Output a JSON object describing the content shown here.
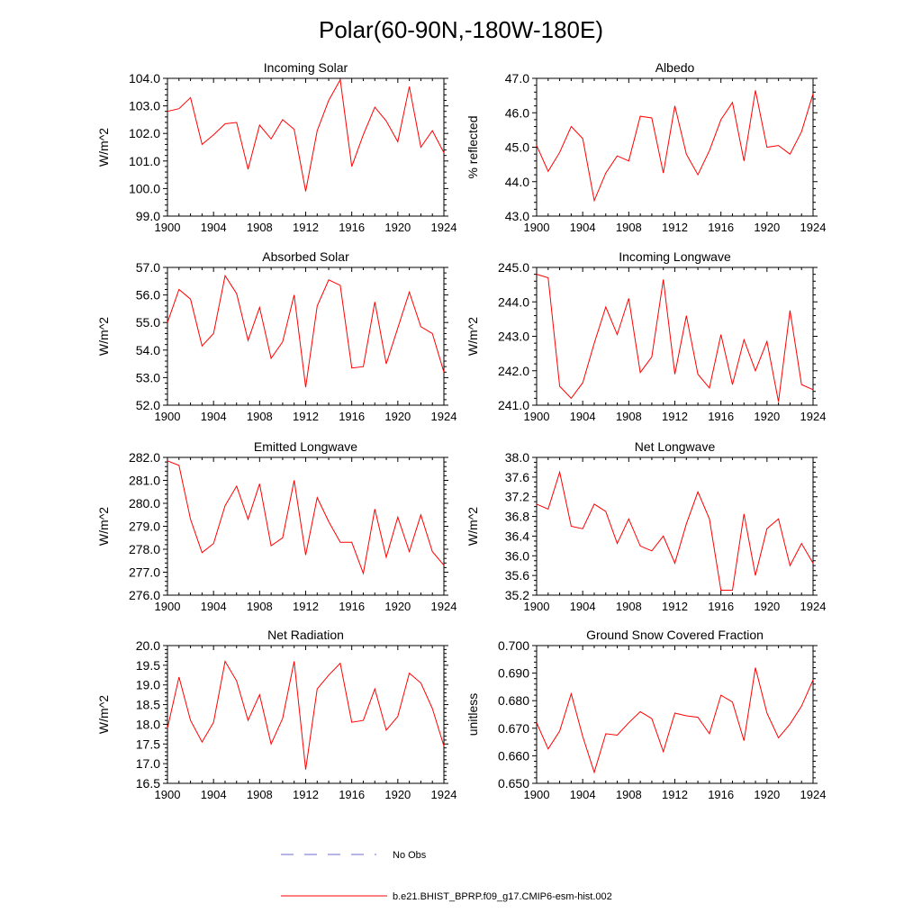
{
  "title": "Polar(60-90N,-180W-180E)",
  "legend": {
    "entries": [
      {
        "label": "No Obs",
        "color": "#6b6bd6",
        "style": "dashed"
      },
      {
        "label": "b.e21.BHIST_BPRP.f09_g17.CMIP6-esm-hist.002",
        "color": "#ff0000",
        "style": "solid"
      }
    ]
  },
  "chart_data": [
    {
      "type": "line",
      "title": "Incoming Solar",
      "ylabel": "W/m^2",
      "xlim": [
        1900,
        1924
      ],
      "xticks": [
        1900,
        1904,
        1908,
        1912,
        1916,
        1920,
        1924
      ],
      "xtick_labels": [
        "1900",
        "1904",
        "1908",
        "1912",
        "1916",
        "1920",
        "1924"
      ],
      "ylim": [
        99.0,
        104.0
      ],
      "yticks": [
        99.0,
        100.0,
        101.0,
        102.0,
        103.0,
        104.0
      ],
      "ytick_labels": [
        "99.0",
        "100.0",
        "101.0",
        "102.0",
        "103.0",
        "104.0"
      ],
      "yminor": 5,
      "series": [
        {
          "name": "b.e21.BHIST_BPRP.f09_g17.CMIP6-esm-hist.002",
          "color": "#ff0000",
          "x": [
            1900,
            1901,
            1902,
            1903,
            1904,
            1905,
            1906,
            1907,
            1908,
            1909,
            1910,
            1911,
            1912,
            1913,
            1914,
            1915,
            1916,
            1917,
            1918,
            1919,
            1920,
            1921,
            1922,
            1923,
            1924
          ],
          "y": [
            102.8,
            102.9,
            103.3,
            101.6,
            101.95,
            102.35,
            102.4,
            100.7,
            102.3,
            101.8,
            102.5,
            102.15,
            99.9,
            102.1,
            103.2,
            103.95,
            100.8,
            101.95,
            102.95,
            102.45,
            101.7,
            103.7,
            101.5,
            102.1,
            101.3
          ]
        }
      ]
    },
    {
      "type": "line",
      "title": "Albedo",
      "ylabel": "% reflected",
      "xlim": [
        1900,
        1924
      ],
      "xticks": [
        1900,
        1904,
        1908,
        1912,
        1916,
        1920,
        1924
      ],
      "xtick_labels": [
        "1900",
        "1904",
        "1908",
        "1912",
        "1916",
        "1920",
        "1924"
      ],
      "ylim": [
        43.0,
        47.0
      ],
      "yticks": [
        43.0,
        44.0,
        45.0,
        46.0,
        47.0
      ],
      "ytick_labels": [
        "43.0",
        "44.0",
        "45.0",
        "46.0",
        "47.0"
      ],
      "yminor": 5,
      "series": [
        {
          "name": "b.e21.BHIST_BPRP.f09_g17.CMIP6-esm-hist.002",
          "color": "#ff0000",
          "x": [
            1900,
            1901,
            1902,
            1903,
            1904,
            1905,
            1906,
            1907,
            1908,
            1909,
            1910,
            1911,
            1912,
            1913,
            1914,
            1915,
            1916,
            1917,
            1918,
            1919,
            1920,
            1921,
            1922,
            1923,
            1924
          ],
          "y": [
            45.05,
            44.3,
            44.85,
            45.6,
            45.25,
            43.45,
            44.25,
            44.75,
            44.6,
            45.9,
            45.85,
            44.25,
            46.2,
            44.8,
            44.2,
            44.9,
            45.8,
            46.3,
            44.6,
            46.65,
            45.0,
            45.05,
            44.8,
            45.45,
            46.55
          ]
        }
      ]
    },
    {
      "type": "line",
      "title": "Absorbed Solar",
      "ylabel": "W/m^2",
      "xlim": [
        1900,
        1924
      ],
      "xticks": [
        1900,
        1904,
        1908,
        1912,
        1916,
        1920,
        1924
      ],
      "xtick_labels": [
        "1900",
        "1904",
        "1908",
        "1912",
        "1916",
        "1920",
        "1924"
      ],
      "ylim": [
        52.0,
        57.0
      ],
      "yticks": [
        52.0,
        53.0,
        54.0,
        55.0,
        56.0,
        57.0
      ],
      "ytick_labels": [
        "52.0",
        "53.0",
        "54.0",
        "55.0",
        "56.0",
        "57.0"
      ],
      "yminor": 5,
      "series": [
        {
          "name": "b.e21.BHIST_BPRP.f09_g17.CMIP6-esm-hist.002",
          "color": "#ff0000",
          "x": [
            1900,
            1901,
            1902,
            1903,
            1904,
            1905,
            1906,
            1907,
            1908,
            1909,
            1910,
            1911,
            1912,
            1913,
            1914,
            1915,
            1916,
            1917,
            1918,
            1919,
            1920,
            1921,
            1922,
            1923,
            1924
          ],
          "y": [
            55.0,
            56.2,
            55.85,
            54.15,
            54.6,
            56.7,
            56.05,
            54.35,
            55.55,
            53.7,
            54.3,
            56.0,
            52.65,
            55.6,
            56.55,
            56.35,
            53.35,
            53.4,
            55.75,
            53.5,
            54.8,
            56.1,
            54.85,
            54.6,
            53.2
          ]
        }
      ]
    },
    {
      "type": "line",
      "title": "Incoming Longwave",
      "ylabel": "W/m^2",
      "xlim": [
        1900,
        1924
      ],
      "xticks": [
        1900,
        1904,
        1908,
        1912,
        1916,
        1920,
        1924
      ],
      "xtick_labels": [
        "1900",
        "1904",
        "1908",
        "1912",
        "1916",
        "1920",
        "1924"
      ],
      "ylim": [
        241.0,
        245.0
      ],
      "yticks": [
        241.0,
        242.0,
        243.0,
        244.0,
        245.0
      ],
      "ytick_labels": [
        "241.0",
        "242.0",
        "243.0",
        "244.0",
        "245.0"
      ],
      "yminor": 5,
      "series": [
        {
          "name": "b.e21.BHIST_BPRP.f09_g17.CMIP6-esm-hist.002",
          "color": "#ff0000",
          "x": [
            1900,
            1901,
            1902,
            1903,
            1904,
            1905,
            1906,
            1907,
            1908,
            1909,
            1910,
            1911,
            1912,
            1913,
            1914,
            1915,
            1916,
            1917,
            1918,
            1919,
            1920,
            1921,
            1922,
            1923,
            1924
          ],
          "y": [
            244.8,
            244.7,
            241.55,
            241.2,
            241.65,
            242.8,
            243.85,
            243.05,
            244.1,
            241.95,
            242.4,
            244.65,
            241.9,
            243.6,
            241.9,
            241.5,
            243.05,
            241.6,
            242.9,
            242.0,
            242.85,
            241.1,
            243.75,
            241.6,
            241.45
          ]
        }
      ]
    },
    {
      "type": "line",
      "title": "Emitted Longwave",
      "ylabel": "W/m^2",
      "xlim": [
        1900,
        1924
      ],
      "xticks": [
        1900,
        1904,
        1908,
        1912,
        1916,
        1920,
        1924
      ],
      "xtick_labels": [
        "1900",
        "1904",
        "1908",
        "1912",
        "1916",
        "1920",
        "1924"
      ],
      "ylim": [
        276.0,
        282.0
      ],
      "yticks": [
        276.0,
        277.0,
        278.0,
        279.0,
        280.0,
        281.0,
        282.0
      ],
      "ytick_labels": [
        "276.0",
        "277.0",
        "278.0",
        "279.0",
        "280.0",
        "281.0",
        "282.0"
      ],
      "yminor": 5,
      "series": [
        {
          "name": "b.e21.BHIST_BPRP.f09_g17.CMIP6-esm-hist.002",
          "color": "#ff0000",
          "x": [
            1900,
            1901,
            1902,
            1903,
            1904,
            1905,
            1906,
            1907,
            1908,
            1909,
            1910,
            1911,
            1912,
            1913,
            1914,
            1915,
            1916,
            1917,
            1918,
            1919,
            1920,
            1921,
            1922,
            1923,
            1924
          ],
          "y": [
            281.85,
            281.65,
            279.3,
            277.85,
            278.25,
            279.9,
            280.75,
            279.3,
            280.85,
            278.15,
            278.5,
            281.0,
            277.75,
            280.25,
            279.2,
            278.3,
            278.3,
            276.95,
            279.75,
            277.65,
            279.4,
            277.9,
            279.5,
            277.9,
            277.3
          ]
        }
      ]
    },
    {
      "type": "line",
      "title": "Net Longwave",
      "ylabel": "W/m^2",
      "xlim": [
        1900,
        1924
      ],
      "xticks": [
        1900,
        1904,
        1908,
        1912,
        1916,
        1920,
        1924
      ],
      "xtick_labels": [
        "1900",
        "1904",
        "1908",
        "1912",
        "1916",
        "1920",
        "1924"
      ],
      "ylim": [
        35.2,
        38.0
      ],
      "yticks": [
        35.2,
        35.6,
        36.0,
        36.4,
        36.8,
        37.2,
        37.6,
        38.0
      ],
      "ytick_labels": [
        "35.2",
        "35.6",
        "36.0",
        "36.4",
        "36.8",
        "37.2",
        "37.6",
        "38.0"
      ],
      "yminor": 4,
      "series": [
        {
          "name": "b.e21.BHIST_BPRP.f09_g17.CMIP6-esm-hist.002",
          "color": "#ff0000",
          "x": [
            1900,
            1901,
            1902,
            1903,
            1904,
            1905,
            1906,
            1907,
            1908,
            1909,
            1910,
            1911,
            1912,
            1913,
            1914,
            1915,
            1916,
            1917,
            1918,
            1919,
            1920,
            1921,
            1922,
            1923,
            1924
          ],
          "y": [
            37.05,
            36.95,
            37.7,
            36.6,
            36.55,
            37.05,
            36.9,
            36.25,
            36.75,
            36.2,
            36.1,
            36.4,
            35.85,
            36.65,
            37.3,
            36.75,
            35.3,
            35.3,
            36.85,
            35.6,
            36.55,
            36.75,
            35.8,
            36.25,
            35.85
          ]
        }
      ]
    },
    {
      "type": "line",
      "title": "Net Radiation",
      "ylabel": "W/m^2",
      "xlim": [
        1900,
        1924
      ],
      "xticks": [
        1900,
        1904,
        1908,
        1912,
        1916,
        1920,
        1924
      ],
      "xtick_labels": [
        "1900",
        "1904",
        "1908",
        "1912",
        "1916",
        "1920",
        "1924"
      ],
      "ylim": [
        16.5,
        20.0
      ],
      "yticks": [
        16.5,
        17.0,
        17.5,
        18.0,
        18.5,
        19.0,
        19.5,
        20.0
      ],
      "ytick_labels": [
        "16.5",
        "17.0",
        "17.5",
        "18.0",
        "18.5",
        "19.0",
        "19.5",
        "20.0"
      ],
      "yminor": 5,
      "series": [
        {
          "name": "b.e21.BHIST_BPRP.f09_g17.CMIP6-esm-hist.002",
          "color": "#ff0000",
          "x": [
            1900,
            1901,
            1902,
            1903,
            1904,
            1905,
            1906,
            1907,
            1908,
            1909,
            1910,
            1911,
            1912,
            1913,
            1914,
            1915,
            1916,
            1917,
            1918,
            1919,
            1920,
            1921,
            1922,
            1923,
            1924
          ],
          "y": [
            17.9,
            19.2,
            18.1,
            17.55,
            18.05,
            19.6,
            19.1,
            18.1,
            18.75,
            17.5,
            18.15,
            19.6,
            16.85,
            18.9,
            19.25,
            19.55,
            18.05,
            18.1,
            18.9,
            17.85,
            18.2,
            19.3,
            19.05,
            18.4,
            17.45
          ]
        }
      ]
    },
    {
      "type": "line",
      "title": "Ground Snow Covered Fraction",
      "ylabel": "unitless",
      "xlim": [
        1900,
        1924
      ],
      "xticks": [
        1900,
        1904,
        1908,
        1912,
        1916,
        1920,
        1924
      ],
      "xtick_labels": [
        "1900",
        "1904",
        "1908",
        "1912",
        "1916",
        "1920",
        "1924"
      ],
      "ylim": [
        0.65,
        0.7
      ],
      "yticks": [
        0.65,
        0.66,
        0.67,
        0.68,
        0.69,
        0.7
      ],
      "ytick_labels": [
        "0.650",
        "0.660",
        "0.670",
        "0.680",
        "0.690",
        "0.700"
      ],
      "yminor": 5,
      "series": [
        {
          "name": "b.e21.BHIST_BPRP.f09_g17.CMIP6-esm-hist.002",
          "color": "#ff0000",
          "x": [
            1900,
            1901,
            1902,
            1903,
            1904,
            1905,
            1906,
            1907,
            1908,
            1909,
            1910,
            1911,
            1912,
            1913,
            1914,
            1915,
            1916,
            1917,
            1918,
            1919,
            1920,
            1921,
            1922,
            1923,
            1924
          ],
          "y": [
            0.672,
            0.6625,
            0.669,
            0.6825,
            0.667,
            0.654,
            0.668,
            0.6675,
            0.672,
            0.676,
            0.6735,
            0.6615,
            0.6755,
            0.6745,
            0.674,
            0.668,
            0.682,
            0.6795,
            0.6655,
            0.692,
            0.6755,
            0.6665,
            0.6715,
            0.678,
            0.6875
          ]
        }
      ]
    }
  ]
}
